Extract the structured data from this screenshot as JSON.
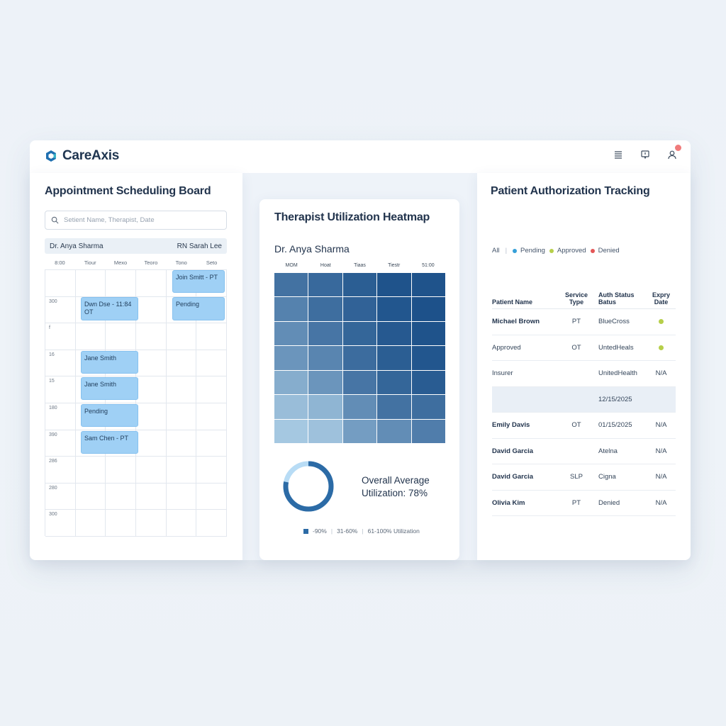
{
  "app": {
    "name": "CareAxis"
  },
  "colors": {
    "accent": "#2c6ba6",
    "appointment": "#9fd0f5",
    "pending": "#35a0d8",
    "approved": "#b6cf4a",
    "denied": "#e45757"
  },
  "scheduling": {
    "title": "Appointment Scheduling Board",
    "search_placeholder": "Setient Name, Therapist, Date",
    "therapists": [
      "Dr. Anya Sharma",
      "RN Sarah Lee"
    ],
    "columns": [
      "8:00",
      "Tiour",
      "Mexo",
      "Teoro",
      "Tono",
      "Seto"
    ],
    "row_labels": [
      "",
      "300",
      "f",
      "16",
      "15",
      "180",
      "390",
      "286",
      "280",
      "300"
    ],
    "appointments": [
      {
        "label": "Join Smitt - PT"
      },
      {
        "label": "Dwn Dse - 11:84 OT"
      },
      {
        "label": "Pending"
      },
      {
        "label": "Jane Smith"
      },
      {
        "label": "Jane Smith"
      },
      {
        "label": "Pending"
      },
      {
        "label": "Sam Chen - PT"
      }
    ]
  },
  "utilization": {
    "title": "Therapist Utilization Heatmap",
    "therapist": "Dr. Anya Sharma",
    "columns": [
      "MOM",
      "Hoat",
      "Tiaas",
      "Tiestr",
      "51:00"
    ],
    "heat_levels": [
      [
        0.72,
        0.78,
        0.85,
        0.92,
        0.92
      ],
      [
        0.62,
        0.75,
        0.82,
        0.9,
        0.93
      ],
      [
        0.55,
        0.7,
        0.8,
        0.88,
        0.92
      ],
      [
        0.5,
        0.6,
        0.76,
        0.85,
        0.9
      ],
      [
        0.35,
        0.5,
        0.7,
        0.8,
        0.86
      ],
      [
        0.25,
        0.3,
        0.55,
        0.72,
        0.75
      ],
      [
        0.18,
        0.22,
        0.45,
        0.55,
        0.65
      ]
    ],
    "overall_label": "Overall Average",
    "overall_value_label": "Utilization: 78%",
    "overall_value": 78,
    "legend": [
      "-90%",
      "31-60%",
      "61-100% Utilization"
    ]
  },
  "authorization": {
    "title": "Patient Authorization Tracking",
    "filters": {
      "all": "All",
      "pending": "Pending",
      "approved": "Approved",
      "denied": "Denied"
    },
    "headers": {
      "name": "Patient Name",
      "service": "Service Type",
      "auth": "Auth Status Batus",
      "expiry": "Expry Date"
    },
    "rows": [
      {
        "name": "Michael Brown",
        "bold": true,
        "service": "PT",
        "auth": "BlueCross",
        "expiry": "",
        "dot": true
      },
      {
        "name": "Approved",
        "bold": false,
        "service": "OT",
        "auth": "UntedHeals",
        "expiry": "",
        "dot": true
      },
      {
        "name": "Insurer",
        "bold": false,
        "service": "",
        "auth": "UnitedHealth",
        "expiry": "N/A",
        "dot": false
      },
      {
        "name": "",
        "bold": false,
        "service": "",
        "auth": "12/15/2025",
        "expiry": "",
        "dot": false,
        "shaded": true
      },
      {
        "name": "Emily Davis",
        "bold": true,
        "service": "OT",
        "auth": "01/15/2025",
        "expiry": "N/A",
        "dot": false
      },
      {
        "name": "David Garcia",
        "bold": true,
        "service": "",
        "auth": "Atelna",
        "expiry": "N/A",
        "dot": false
      },
      {
        "name": "David Garcia",
        "bold": true,
        "service": "SLP",
        "auth": "Cigna",
        "expiry": "N/A",
        "dot": false
      },
      {
        "name": "Olivia Kim",
        "bold": true,
        "service": "PT",
        "auth": "Denied",
        "expiry": "N/A",
        "dot": false
      }
    ]
  }
}
